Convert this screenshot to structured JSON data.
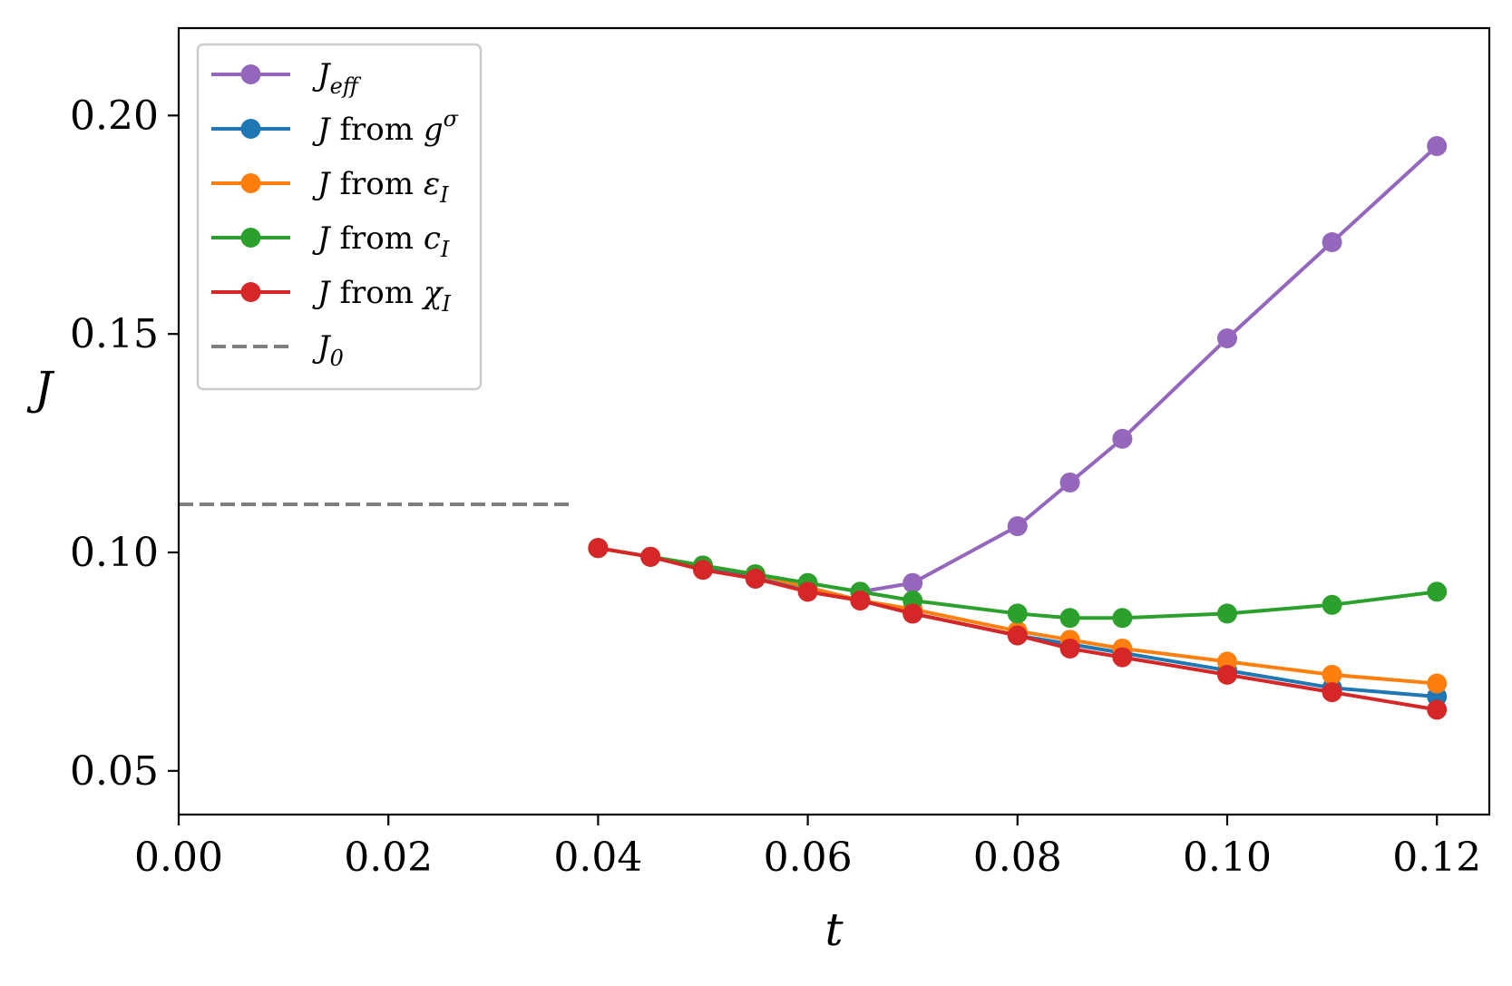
{
  "chart_data": {
    "type": "line",
    "xlabel": "t",
    "ylabel": "J",
    "xlim": [
      0.0,
      0.125
    ],
    "ylim": [
      0.04,
      0.22
    ],
    "xticks": [
      0.0,
      0.02,
      0.04,
      0.06,
      0.08,
      0.1,
      0.12
    ],
    "xtick_labels": [
      "0.00",
      "0.02",
      "0.04",
      "0.06",
      "0.08",
      "0.10",
      "0.12"
    ],
    "yticks": [
      0.05,
      0.1,
      0.15,
      0.2
    ],
    "ytick_labels": [
      "0.05",
      "0.10",
      "0.15",
      "0.20"
    ],
    "grid": false,
    "legend_position": "top-left",
    "x": [
      0.04,
      0.045,
      0.05,
      0.055,
      0.06,
      0.065,
      0.07,
      0.08,
      0.085,
      0.09,
      0.1,
      0.11,
      0.12
    ],
    "series": [
      {
        "name": "J_eff",
        "legend": {
          "main": "J",
          "sub": "eff"
        },
        "color": "#9467bd",
        "marker": "circle",
        "values": [
          null,
          null,
          null,
          null,
          null,
          0.091,
          0.093,
          0.106,
          0.116,
          0.126,
          0.149,
          0.171,
          0.193
        ]
      },
      {
        "name": "J from g^σ",
        "legend": {
          "main": "J",
          "text": " from ",
          "var": "g",
          "sup": "σ"
        },
        "color": "#1f77b4",
        "marker": "circle",
        "values": [
          0.101,
          0.099,
          0.097,
          0.094,
          0.092,
          0.089,
          0.086,
          0.081,
          0.079,
          0.077,
          0.073,
          0.069,
          0.067
        ]
      },
      {
        "name": "J from ε_I",
        "legend": {
          "main": "J",
          "text": " from ",
          "var": "ε",
          "sub": "I"
        },
        "color": "#ff7f0e",
        "marker": "circle",
        "values": [
          0.101,
          0.099,
          0.097,
          0.095,
          0.092,
          0.089,
          0.087,
          0.082,
          0.08,
          0.078,
          0.075,
          0.072,
          0.07
        ]
      },
      {
        "name": "J from c_I",
        "legend": {
          "main": "J",
          "text": " from ",
          "var": "c",
          "sub": "I"
        },
        "color": "#2ca02c",
        "marker": "circle",
        "values": [
          0.101,
          0.099,
          0.097,
          0.095,
          0.093,
          0.091,
          0.089,
          0.086,
          0.085,
          0.085,
          0.086,
          0.088,
          0.091
        ]
      },
      {
        "name": "J from χ_I",
        "legend": {
          "main": "J",
          "text": " from ",
          "var": "χ",
          "sub": "I"
        },
        "color": "#d62728",
        "marker": "circle",
        "values": [
          0.101,
          0.099,
          0.096,
          0.094,
          0.091,
          0.089,
          0.086,
          0.081,
          0.078,
          0.076,
          0.072,
          0.068,
          0.064
        ]
      },
      {
        "name": "J_0",
        "legend": {
          "main": "J",
          "sub": "0"
        },
        "color": "#7f7f7f",
        "marker": "none",
        "dashed": true,
        "x_range": [
          0.0,
          0.0375
        ],
        "value": 0.111
      }
    ]
  }
}
